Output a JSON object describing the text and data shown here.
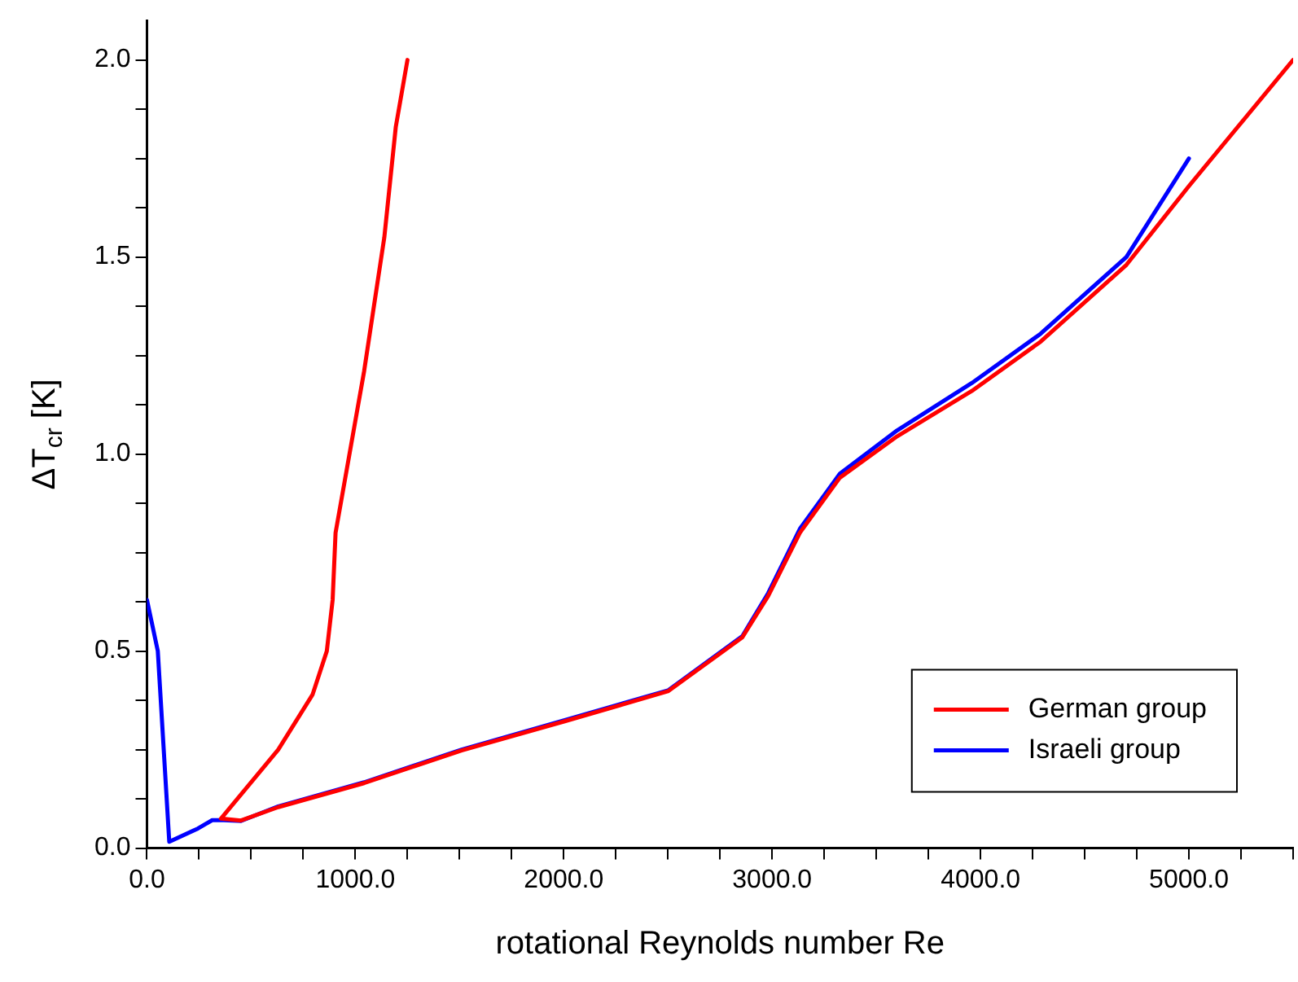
{
  "chart_data": {
    "type": "line",
    "xlabel": "rotational Reynolds number Re",
    "ylabel": "ΔT$_{cr}$ [K]",
    "xlim": [
      0,
      5500
    ],
    "ylim": [
      0,
      2.1
    ],
    "xticks": [
      {
        "value": 0,
        "label": "0.0"
      },
      {
        "value": 250,
        "label": null
      },
      {
        "value": 500,
        "label": null
      },
      {
        "value": 750,
        "label": null
      },
      {
        "value": 1000,
        "label": "1000.0"
      },
      {
        "value": 1250,
        "label": null
      },
      {
        "value": 1500,
        "label": null
      },
      {
        "value": 1750,
        "label": null
      },
      {
        "value": 2000,
        "label": "2000.0"
      },
      {
        "value": 2250,
        "label": null
      },
      {
        "value": 2500,
        "label": null
      },
      {
        "value": 2750,
        "label": null
      },
      {
        "value": 3000,
        "label": "3000.0"
      },
      {
        "value": 3250,
        "label": null
      },
      {
        "value": 3500,
        "label": null
      },
      {
        "value": 3750,
        "label": null
      },
      {
        "value": 4000,
        "label": "4000.0"
      },
      {
        "value": 4250,
        "label": null
      },
      {
        "value": 4500,
        "label": null
      },
      {
        "value": 4750,
        "label": null
      },
      {
        "value": 5000,
        "label": "5000.0"
      },
      {
        "value": 5250,
        "label": null
      },
      {
        "value": 5500,
        "label": null
      }
    ],
    "yticks": [
      {
        "value": 0,
        "label": "0.0"
      },
      {
        "value": 0.125,
        "label": null
      },
      {
        "value": 0.25,
        "label": null
      },
      {
        "value": 0.375,
        "label": null
      },
      {
        "value": 0.5,
        "label": "0.5"
      },
      {
        "value": 0.625,
        "label": null
      },
      {
        "value": 0.75,
        "label": null
      },
      {
        "value": 0.875,
        "label": null
      },
      {
        "value": 1,
        "label": "1.0"
      },
      {
        "value": 1.125,
        "label": null
      },
      {
        "value": 1.25,
        "label": null
      },
      {
        "value": 1.375,
        "label": null
      },
      {
        "value": 1.5,
        "label": "1.5"
      },
      {
        "value": 1.625,
        "label": null
      },
      {
        "value": 1.75,
        "label": null
      },
      {
        "value": 1.875,
        "label": null
      },
      {
        "value": 2,
        "label": "2.0"
      }
    ],
    "grid": false,
    "legend": "bottom right",
    "marker": "none",
    "line_style": "solid",
    "series": [
      {
        "name": "German group",
        "color": "#ff0000",
        "x": [
          1250,
          1194,
          1139,
          1042,
          905,
          891,
          863,
          795,
          630,
          355,
          451,
          630,
          1042,
          1510,
          2005,
          2500,
          2857,
          2981,
          3133,
          3325,
          3600,
          3958,
          4288,
          4700,
          5000,
          5500
        ],
        "values": [
          2.0,
          1.83,
          1.55,
          1.21,
          0.8,
          0.63,
          0.5,
          0.39,
          0.25,
          0.075,
          0.07,
          0.104,
          0.165,
          0.248,
          0.322,
          0.398,
          0.535,
          0.64,
          0.8,
          0.94,
          1.045,
          1.16,
          1.285,
          1.48,
          1.68,
          2.0
        ]
      },
      {
        "name": "Israeli group",
        "color": "#0000ff",
        "x": [
          0,
          52,
          107,
          245,
          313,
          368,
          451,
          630,
          1042,
          1510,
          2005,
          2500,
          2857,
          2981,
          3133,
          3325,
          3600,
          3958,
          4288,
          4700,
          5000
        ],
        "values": [
          0.63,
          0.5,
          0.016,
          0.05,
          0.071,
          0.071,
          0.069,
          0.106,
          0.167,
          0.25,
          0.325,
          0.4,
          0.538,
          0.647,
          0.81,
          0.95,
          1.06,
          1.18,
          1.305,
          1.5,
          1.75
        ]
      }
    ]
  }
}
